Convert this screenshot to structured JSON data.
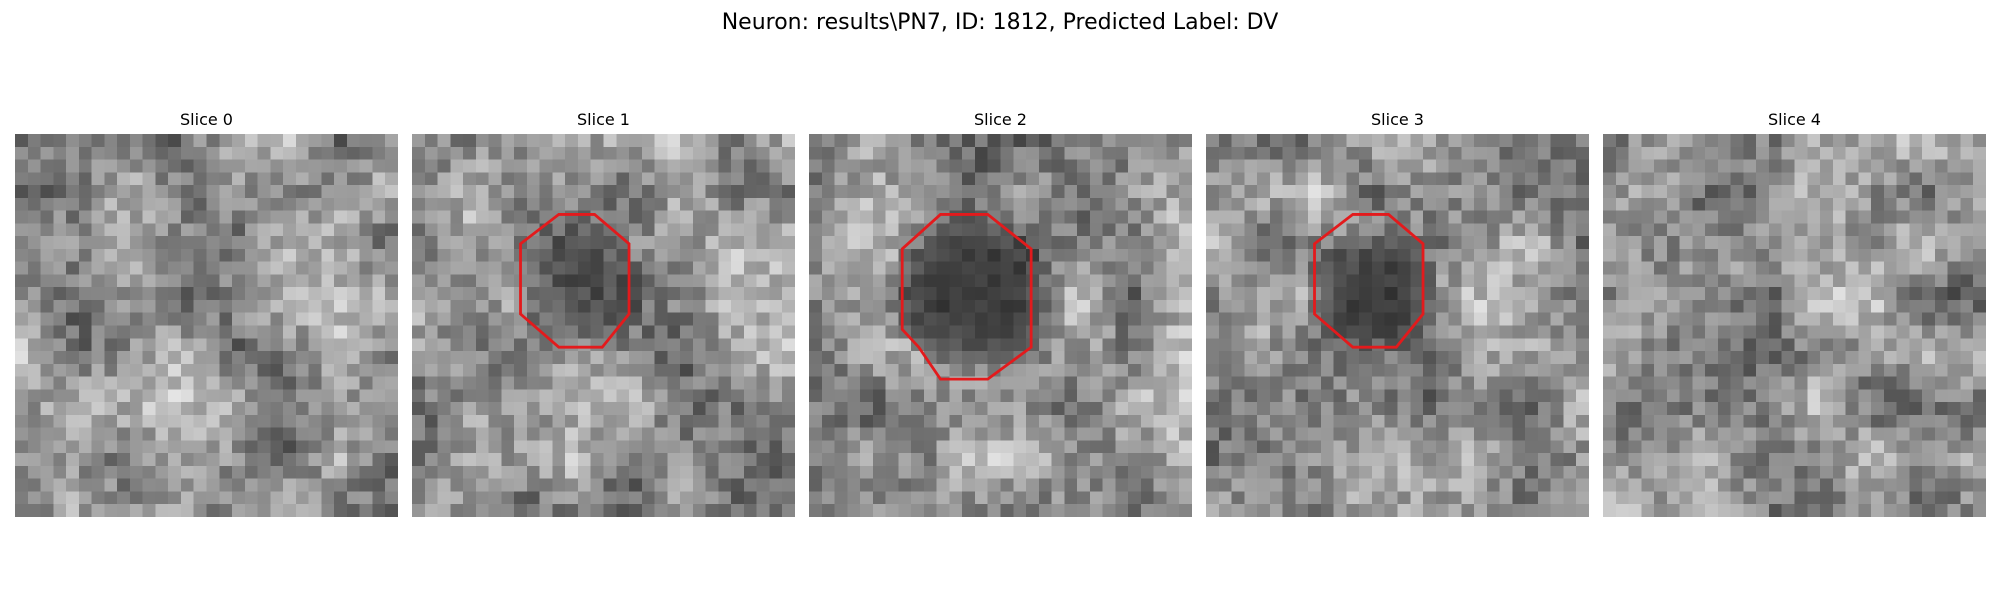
{
  "figure": {
    "title": "Neuron: results\\PN7, ID: 1812, Predicted Label: DV"
  },
  "outline_color": "#e31a1c",
  "slices": [
    {
      "title": "Slice 0",
      "seed": 11,
      "base": 150,
      "spot": 0,
      "outline": false
    },
    {
      "title": "Slice 1",
      "seed": 23,
      "base": 150,
      "spot": 0.55,
      "outline": true,
      "roi": "small"
    },
    {
      "title": "Slice 2",
      "seed": 37,
      "base": 150,
      "spot": 1.0,
      "outline": true,
      "roi": "large"
    },
    {
      "title": "Slice 3",
      "seed": 53,
      "base": 155,
      "spot": 0.9,
      "outline": true,
      "roi": "small"
    },
    {
      "title": "Slice 4",
      "seed": 71,
      "base": 145,
      "spot": 0,
      "outline": false
    }
  ]
}
